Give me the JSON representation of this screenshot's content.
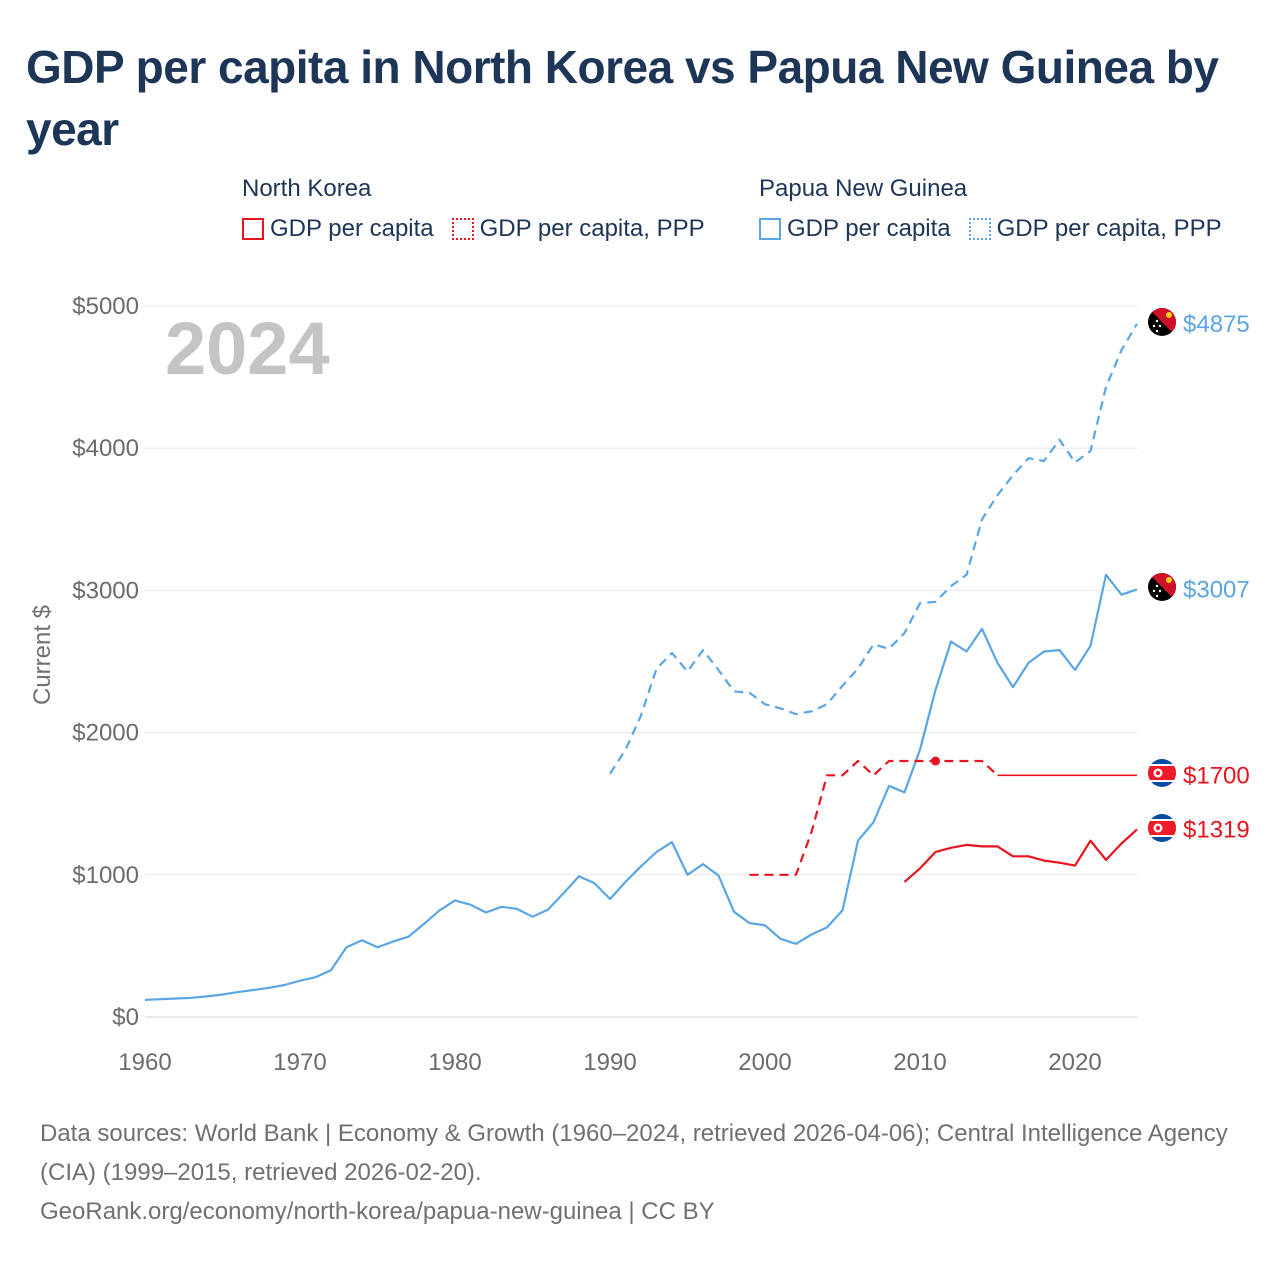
{
  "title": "GDP per capita in North Korea vs Papua New Guinea by year",
  "legend": {
    "groups": [
      {
        "country": "North Korea",
        "color": "#e8141e",
        "items": [
          {
            "label": "GDP per capita",
            "style": "solid"
          },
          {
            "label": "GDP per capita, PPP",
            "style": "dotted"
          }
        ]
      },
      {
        "country": "Papua New Guinea",
        "color": "#5aa5e6",
        "items": [
          {
            "label": "GDP per capita",
            "style": "solid"
          },
          {
            "label": "GDP per capita, PPP",
            "style": "dotted"
          }
        ]
      }
    ]
  },
  "footer": {
    "sources": "Data sources: World Bank | Economy & Growth (1960–2024, retrieved 2026-04-06); Central Intelligence Agency (CIA) (1999–2015, retrieved 2026-02-20).",
    "credit": "GeoRank.org/economy/north-korea/papua-new-guinea | CC BY"
  },
  "chart_data": {
    "type": "line",
    "year_label": "2024",
    "ylabel": "Current $",
    "xlim": [
      1960,
      2024
    ],
    "ylim": [
      0,
      5000
    ],
    "x_ticks": [
      "1960",
      "1970",
      "1980",
      "1990",
      "2000",
      "2010",
      "2020"
    ],
    "y_ticks": [
      "$0",
      "$1000",
      "$2000",
      "$3000",
      "$4000",
      "$5000"
    ],
    "grid": true,
    "series": [
      {
        "name": "Papua New Guinea GDP per capita, PPP",
        "country": "Papua New Guinea",
        "color": "#5aa5e6",
        "dash": "dashed",
        "x": [
          1990,
          1991,
          1992,
          1993,
          1994,
          1995,
          1996,
          1997,
          1998,
          1999,
          2000,
          2001,
          2002,
          2003,
          2004,
          2005,
          2006,
          2007,
          2008,
          2009,
          2010,
          2011,
          2012,
          2013,
          2014,
          2015,
          2016,
          2017,
          2018,
          2019,
          2020,
          2021,
          2022,
          2023,
          2024
        ],
        "y": [
          1710,
          1880,
          2120,
          2450,
          2560,
          2430,
          2580,
          2440,
          2290,
          2280,
          2200,
          2170,
          2130,
          2150,
          2200,
          2330,
          2450,
          2620,
          2590,
          2700,
          2910,
          2920,
          3030,
          3110,
          3500,
          3670,
          3810,
          3930,
          3910,
          4060,
          3900,
          3980,
          4430,
          4690,
          4875
        ],
        "end_label": "$4875"
      },
      {
        "name": "Papua New Guinea GDP per capita",
        "country": "Papua New Guinea",
        "color": "#5aa5e6",
        "dash": "solid",
        "x": [
          1960,
          1961,
          1962,
          1963,
          1964,
          1965,
          1966,
          1967,
          1968,
          1969,
          1970,
          1971,
          1972,
          1973,
          1974,
          1975,
          1976,
          1977,
          1978,
          1979,
          1980,
          1981,
          1982,
          1983,
          1984,
          1985,
          1986,
          1987,
          1988,
          1989,
          1990,
          1991,
          1992,
          1993,
          1994,
          1995,
          1996,
          1997,
          1998,
          1999,
          2000,
          2001,
          2002,
          2003,
          2004,
          2005,
          2006,
          2007,
          2008,
          2009,
          2010,
          2011,
          2012,
          2013,
          2014,
          2015,
          2016,
          2017,
          2018,
          2019,
          2020,
          2021,
          2022,
          2023,
          2024
        ],
        "y": [
          120,
          125,
          130,
          135,
          145,
          158,
          175,
          190,
          205,
          225,
          255,
          280,
          330,
          490,
          540,
          490,
          530,
          565,
          655,
          750,
          820,
          790,
          735,
          775,
          760,
          705,
          755,
          870,
          990,
          940,
          830,
          950,
          1060,
          1160,
          1230,
          1000,
          1075,
          995,
          740,
          660,
          645,
          550,
          515,
          580,
          630,
          750,
          1240,
          1370,
          1625,
          1580,
          1880,
          2300,
          2640,
          2570,
          2730,
          2490,
          2320,
          2490,
          2570,
          2580,
          2440,
          2610,
          3110,
          2970,
          3007
        ],
        "end_label": "$3007"
      },
      {
        "name": "North Korea GDP per capita, PPP",
        "country": "North Korea",
        "color": "#e8141e",
        "dash": "dashed",
        "x": [
          1999,
          2000,
          2001,
          2002,
          2003,
          2004,
          2005,
          2006,
          2007,
          2008,
          2009,
          2010,
          2011,
          2012,
          2013,
          2014,
          2015,
          2016,
          2017,
          2018,
          2019,
          2020,
          2021,
          2022,
          2023,
          2024
        ],
        "y": [
          1000,
          1000,
          1000,
          1000,
          1300,
          1700,
          1700,
          1800,
          1700,
          1800,
          1800,
          1800,
          1800,
          1800,
          1800,
          1800,
          1700,
          1700,
          1700,
          1700,
          1700,
          1700,
          1700,
          1700,
          1700,
          1700
        ],
        "dash_until": 2015,
        "marker_year": 2011,
        "end_label": "$1700"
      },
      {
        "name": "North Korea GDP per capita",
        "country": "North Korea",
        "color": "#e8141e",
        "dash": "solid",
        "x": [
          2009,
          2010,
          2011,
          2012,
          2013,
          2014,
          2015,
          2016,
          2017,
          2018,
          2019,
          2020,
          2021,
          2022,
          2023,
          2024
        ],
        "y": [
          950,
          1045,
          1160,
          1190,
          1210,
          1200,
          1200,
          1130,
          1130,
          1100,
          1085,
          1065,
          1240,
          1105,
          1220,
          1319
        ],
        "end_label": "$1319"
      }
    ]
  }
}
